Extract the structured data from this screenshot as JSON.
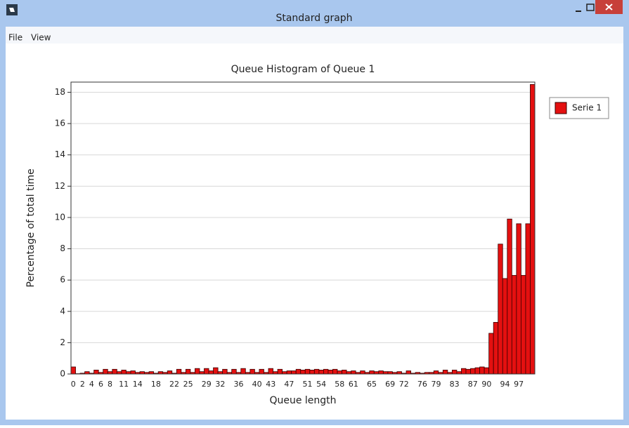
{
  "window": {
    "title": "Standard graph",
    "menu": [
      "File",
      "View"
    ]
  },
  "chart_data": {
    "type": "bar",
    "title": "Queue Histogram of Queue 1",
    "x_label": "Queue length",
    "y_label": "Percentage of total time",
    "categories": [
      "0",
      null,
      "2",
      null,
      "4",
      null,
      "6",
      null,
      "8",
      null,
      null,
      "11",
      null,
      null,
      "14",
      null,
      null,
      null,
      "18",
      null,
      null,
      null,
      "22",
      null,
      null,
      "25",
      null,
      null,
      null,
      "29",
      null,
      null,
      "32",
      null,
      null,
      null,
      "36",
      null,
      null,
      null,
      "40",
      null,
      null,
      "43",
      null,
      null,
      null,
      "47",
      null,
      null,
      null,
      "51",
      null,
      null,
      "54",
      null,
      null,
      null,
      "58",
      null,
      null,
      "61",
      null,
      null,
      null,
      "65",
      null,
      null,
      null,
      "69",
      null,
      null,
      "72",
      null,
      null,
      null,
      "76",
      null,
      null,
      "79",
      null,
      null,
      null,
      "83",
      null,
      null,
      null,
      "87",
      null,
      null,
      "90",
      null,
      null,
      null,
      "94",
      null,
      null,
      "97",
      null,
      null,
      null
    ],
    "series": [
      {
        "name": "Serie 1",
        "color": "#e41010",
        "values": [
          0.45,
          0.02,
          0.05,
          0.15,
          0.05,
          0.25,
          0.1,
          0.3,
          0.15,
          0.3,
          0.15,
          0.25,
          0.15,
          0.2,
          0.1,
          0.15,
          0.1,
          0.15,
          0.05,
          0.15,
          0.1,
          0.2,
          0.05,
          0.3,
          0.1,
          0.3,
          0.1,
          0.35,
          0.15,
          0.35,
          0.2,
          0.4,
          0.15,
          0.3,
          0.1,
          0.3,
          0.1,
          0.35,
          0.1,
          0.3,
          0.1,
          0.3,
          0.1,
          0.35,
          0.15,
          0.3,
          0.15,
          0.2,
          0.2,
          0.3,
          0.25,
          0.3,
          0.25,
          0.3,
          0.25,
          0.3,
          0.25,
          0.3,
          0.2,
          0.25,
          0.15,
          0.2,
          0.1,
          0.2,
          0.1,
          0.2,
          0.15,
          0.2,
          0.15,
          0.15,
          0.1,
          0.15,
          0.05,
          0.2,
          0.05,
          0.1,
          0.05,
          0.1,
          0.1,
          0.2,
          0.1,
          0.25,
          0.1,
          0.25,
          0.15,
          0.35,
          0.3,
          0.35,
          0.4,
          0.45,
          0.4,
          2.6,
          3.3,
          8.3,
          6.1,
          9.9,
          6.3,
          9.6,
          6.3,
          9.6,
          18.5
        ]
      }
    ],
    "ylim": [
      0,
      18.65
    ],
    "yticks": [
      0,
      2,
      4,
      6,
      8,
      10,
      12,
      14,
      16,
      18
    ],
    "grid": true,
    "legend": "upper right"
  }
}
